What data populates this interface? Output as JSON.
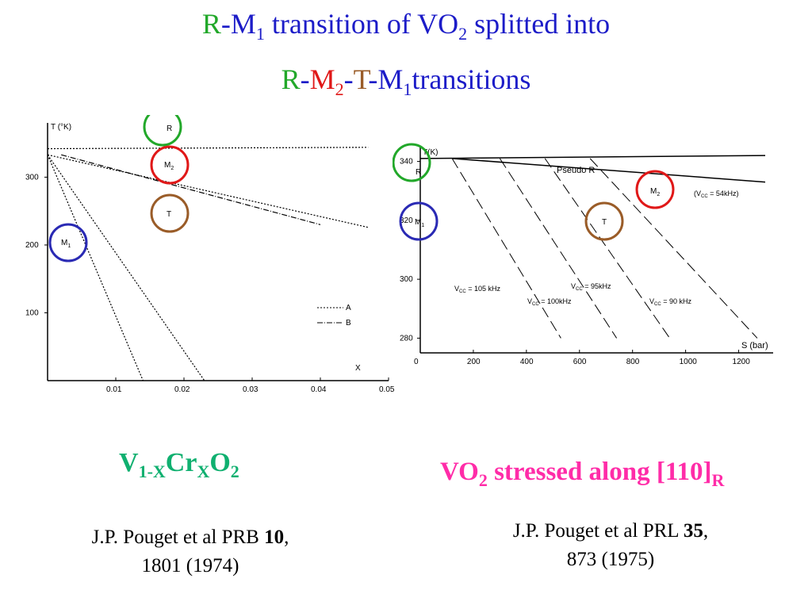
{
  "title": {
    "line1": {
      "r": "R",
      "dash": "-M",
      "sub1": "1",
      "mid": " transition of VO",
      "sub2": "2",
      "end": " splitted into"
    },
    "line2": {
      "r": "R",
      "d1": "-",
      "m2": "M",
      "sub_m2": "2",
      "d2": "-",
      "t": "T",
      "d3": "-M",
      "sub_m1": "1",
      "end": "transitions"
    }
  },
  "colors": {
    "title": "#1c1cc8",
    "R": "#22a82a",
    "M2": "#e01818",
    "T": "#9a5c28",
    "M1": "#2a2ab4",
    "left_caption": "#10b070",
    "right_caption": "#ff2ca8"
  },
  "chart_data": [
    {
      "type": "line",
      "ylabel": "T (°K)",
      "xlabel": "X",
      "x_ticks": [
        "0.01",
        "0.02",
        "0.03",
        "0.04",
        "0.05"
      ],
      "y_ticks": [
        "300",
        "200",
        "100"
      ],
      "xlim": [
        0,
        0.05
      ],
      "ylim": [
        0,
        380
      ],
      "phase_labels": [
        "R",
        "M2",
        "T",
        "M1"
      ],
      "legend": [
        "A",
        "B"
      ],
      "series": [
        {
          "name": "A",
          "x": [
            0,
            0.014
          ],
          "y": [
            333,
            0
          ]
        },
        {
          "name": "A",
          "x": [
            0,
            0.023
          ],
          "y": [
            333,
            0
          ]
        },
        {
          "name": "A",
          "x": [
            0,
            0.047
          ],
          "y": [
            342,
            344
          ]
        },
        {
          "name": "A",
          "x": [
            0,
            0.047
          ],
          "y": [
            333,
            226
          ]
        },
        {
          "name": "B",
          "x": [
            0.002,
            0.04
          ],
          "y": [
            333,
            230
          ]
        }
      ]
    },
    {
      "type": "line",
      "ylabel": "T(K)",
      "xlabel": "S (bar)",
      "x_ticks": [
        "0",
        "200",
        "400",
        "600",
        "800",
        "1000",
        "1200"
      ],
      "y_ticks": [
        "340",
        "320",
        "300",
        "280"
      ],
      "xlim": [
        0,
        1300
      ],
      "ylim": [
        275,
        345
      ],
      "phase_labels": [
        "R",
        "M1",
        "M2",
        "T",
        "Pseudo R"
      ],
      "annotations": [
        "(V",
        "CC",
        " = 54kHz)",
        "V",
        "CC",
        " = 105 kHz",
        "V",
        "CC",
        " = 100kHz",
        "V",
        "CC",
        " = 95kHz",
        "V",
        "CC",
        " = 90 kHz"
      ],
      "series": [
        {
          "name": "Pseudo R",
          "x": [
            0,
            1300
          ],
          "y": [
            341,
            342
          ]
        },
        {
          "name": "M2-T",
          "x": [
            120,
            1300
          ],
          "y": [
            341,
            333
          ]
        },
        {
          "name": "105kHz",
          "x": [
            120,
            530
          ],
          "y": [
            341,
            280
          ]
        },
        {
          "name": "100kHz",
          "x": [
            300,
            740
          ],
          "y": [
            341,
            280
          ]
        },
        {
          "name": "95kHz",
          "x": [
            470,
            940
          ],
          "y": [
            341,
            280
          ]
        },
        {
          "name": "90kHz",
          "x": [
            640,
            1270
          ],
          "y": [
            341,
            280
          ]
        }
      ]
    }
  ],
  "captions": {
    "left": {
      "v": "V",
      "sub_v": "1-X",
      "cr": "Cr",
      "sub_cr": "X",
      "o": "O",
      "sub_o": "2"
    },
    "right": {
      "vo": "VO",
      "sub_vo": "2",
      "text": " stressed along [110]",
      "sub_r": "R"
    }
  },
  "refs": {
    "left": {
      "text": "J.P. Pouget et al PRB ",
      "vol": "10",
      "comma": ",",
      "line2": "1801 (1974)"
    },
    "right": {
      "text": "J.P. Pouget et al PRL ",
      "vol": "35",
      "comma": ",",
      "line2": "873 (1975)"
    }
  }
}
